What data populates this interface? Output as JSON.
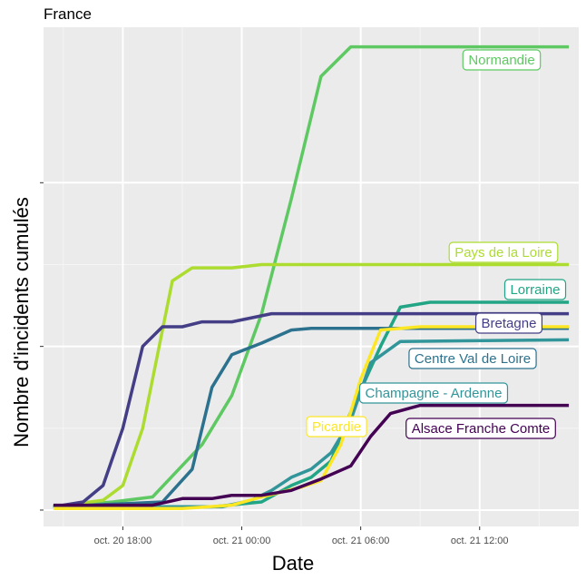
{
  "page_title": "France",
  "chart_data": {
    "type": "line",
    "title": "France",
    "xlabel": "Date",
    "ylabel": "Nombre d'incidents cumulés",
    "x_unit": "date-time (hours, Oct 20 → Oct 21)",
    "x_ticks": [
      {
        "x": "2020-10-20 18:00",
        "label": "oct. 20 18:00"
      },
      {
        "x": "2020-10-21 00:00",
        "label": "oct. 21 00:00"
      },
      {
        "x": "2020-10-21 06:00",
        "label": "oct. 21 06:00"
      },
      {
        "x": "2020-10-21 12:00",
        "label": "oct. 21 12:00"
      }
    ],
    "xlim": [
      "2020-10-20 14:00",
      "2020-10-21 17:00"
    ],
    "y_ticks": [
      0,
      100,
      200
    ],
    "y_tick_labels_shown": false,
    "ylim": [
      -10,
      295
    ],
    "grid": true,
    "legend": "direct labels at line ends",
    "series": [
      {
        "name": "Normandie",
        "color": "#5ec962",
        "x": [
          "2020-10-20 14:30",
          "2020-10-20 17:30",
          "2020-10-20 19:30",
          "2020-10-20 22:00",
          "2020-10-20 23:30",
          "2020-10-21 01:00",
          "2020-10-21 02:30",
          "2020-10-21 04:00",
          "2020-10-21 05:30",
          "2020-10-21 06:00",
          "2020-10-21 16:30"
        ],
        "y": [
          2,
          5,
          8,
          40,
          70,
          120,
          190,
          265,
          283,
          283,
          283
        ]
      },
      {
        "name": "Pays de la Loire",
        "color": "#addc30",
        "x": [
          "2020-10-20 14:30",
          "2020-10-20 17:00",
          "2020-10-20 18:00",
          "2020-10-20 19:00",
          "2020-10-20 20:30",
          "2020-10-20 21:30",
          "2020-10-20 23:30",
          "2020-10-21 01:00",
          "2020-10-21 16:30"
        ],
        "y": [
          2,
          6,
          15,
          50,
          140,
          148,
          148,
          150,
          150
        ]
      },
      {
        "name": "Lorraine",
        "color": "#21a585",
        "x": [
          "2020-10-20 14:30",
          "2020-10-20 19:00",
          "2020-10-20 22:30",
          "2020-10-21 01:00",
          "2020-10-21 02:30",
          "2020-10-21 03:30",
          "2020-10-21 04:30",
          "2020-10-21 05:30",
          "2020-10-21 07:00",
          "2020-10-21 08:00",
          "2020-10-21 09:30",
          "2020-10-21 16:30"
        ],
        "y": [
          2,
          2,
          2,
          5,
          15,
          20,
          30,
          60,
          100,
          124,
          127,
          127
        ]
      },
      {
        "name": "Bretagne",
        "color": "#433e85",
        "x": [
          "2020-10-20 14:30",
          "2020-10-20 16:00",
          "2020-10-20 17:00",
          "2020-10-20 18:00",
          "2020-10-20 19:00",
          "2020-10-20 20:00",
          "2020-10-20 21:00",
          "2020-10-20 22:00",
          "2020-10-20 23:30",
          "2020-10-21 01:30",
          "2020-10-21 03:00",
          "2020-10-21 16:30"
        ],
        "y": [
          2,
          5,
          15,
          50,
          100,
          112,
          112,
          115,
          115,
          120,
          120,
          120
        ]
      },
      {
        "name": "Centre Val de Loire",
        "color": "#2c728e",
        "x": [
          "2020-10-20 14:30",
          "2020-10-20 20:00",
          "2020-10-20 21:30",
          "2020-10-20 22:30",
          "2020-10-20 23:30",
          "2020-10-21 01:00",
          "2020-10-21 02:30",
          "2020-10-21 03:30",
          "2020-10-21 04:30",
          "2020-10-21 16:30"
        ],
        "y": [
          2,
          5,
          25,
          75,
          95,
          102,
          110,
          111,
          111,
          111
        ]
      },
      {
        "name": "Champagne - Ardenne",
        "color": "#31959a",
        "x": [
          "2020-10-20 14:30",
          "2020-10-20 23:00",
          "2020-10-21 00:30",
          "2020-10-21 01:30",
          "2020-10-21 02:30",
          "2020-10-21 03:30",
          "2020-10-21 04:30",
          "2020-10-21 05:30",
          "2020-10-21 06:30",
          "2020-10-21 08:00",
          "2020-10-21 16:30"
        ],
        "y": [
          2,
          2,
          6,
          12,
          20,
          25,
          35,
          55,
          90,
          103,
          104
        ]
      },
      {
        "name": "Picardie",
        "color": "#fde725",
        "x": [
          "2020-10-20 14:30",
          "2020-10-20 21:00",
          "2020-10-20 23:30",
          "2020-10-21 01:00",
          "2020-10-21 03:00",
          "2020-10-21 04:00",
          "2020-10-21 05:00",
          "2020-10-21 06:00",
          "2020-10-21 07:00",
          "2020-10-21 09:00",
          "2020-10-21 16:30"
        ],
        "y": [
          1,
          1,
          3,
          8,
          14,
          18,
          40,
          80,
          110,
          112,
          112
        ]
      },
      {
        "name": "Alsace Franche Comte",
        "color": "#440154",
        "x": [
          "2020-10-20 14:30",
          "2020-10-20 19:30",
          "2020-10-20 21:00",
          "2020-10-20 22:30",
          "2020-10-20 23:30",
          "2020-10-21 01:00",
          "2020-10-21 02:30",
          "2020-10-21 04:00",
          "2020-10-21 05:30",
          "2020-10-21 06:30",
          "2020-10-21 07:30",
          "2020-10-21 09:00",
          "2020-10-21 16:30"
        ],
        "y": [
          3,
          3,
          7,
          7,
          9,
          9,
          12,
          19,
          27,
          45,
          59,
          64,
          64
        ]
      }
    ]
  }
}
